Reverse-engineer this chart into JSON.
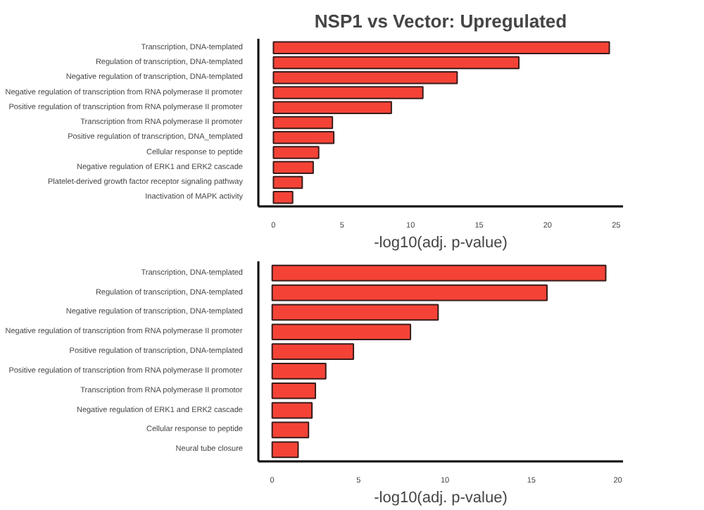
{
  "chart_data": [
    {
      "type": "bar",
      "orientation": "horizontal",
      "title": "NSP1 vs Vector: Upregulated",
      "xlabel": "-log10(adj. p-value)",
      "categories": [
        "Transcription, DNA-templated",
        "Regulation of transcription, DNA-templated",
        "Negative regulation of transcription, DNA-templated",
        "Negative regulation of transcription from RNA polymerase II promoter",
        "Positive regulation of transcription from RNA polymerase II promoter",
        "Transcription from RNA polymerase II promoter",
        "Positive regulation of transcription, DNA_templated",
        "Cellular response to peptide",
        "Negative regulation of ERK1 and ERK2 cascade",
        "Platelet-derived growth factor receptor signaling pathway",
        "Inactivation of MAPK activity"
      ],
      "values": [
        24.5,
        17.9,
        13.4,
        10.9,
        8.6,
        4.3,
        4.4,
        3.3,
        2.9,
        2.1,
        1.4
      ],
      "color": "#f44336",
      "xlim": [
        -1.1,
        25.5
      ],
      "xticks": [
        0,
        5,
        10,
        15,
        20,
        25
      ]
    },
    {
      "type": "bar",
      "orientation": "horizontal",
      "xlabel": "-log10(adj. p-value)",
      "categories": [
        "Transcription, DNA-templated",
        "Regulation of transcription, DNA-templated",
        "Negative regulation of transcription, DNA-templated",
        "Negative regulation of transcription from RNA polymerase II promoter",
        "Positive regulation of transcription, DNA-templated",
        "Positive regulation of transcription from RNA polymerase II promoter",
        "Transcription from RNA polymerase II promotor",
        "Negative regulation of ERK1 and ERK2 cascade",
        "Cellular response to peptide",
        "Neural tube closure"
      ],
      "values": [
        19.3,
        15.9,
        9.6,
        8.0,
        4.7,
        3.1,
        2.5,
        2.3,
        2.1,
        1.5
      ],
      "color": "#f44336",
      "xlim": [
        -0.8,
        20.3
      ],
      "xticks": [
        0,
        5,
        10,
        15,
        20
      ]
    }
  ]
}
